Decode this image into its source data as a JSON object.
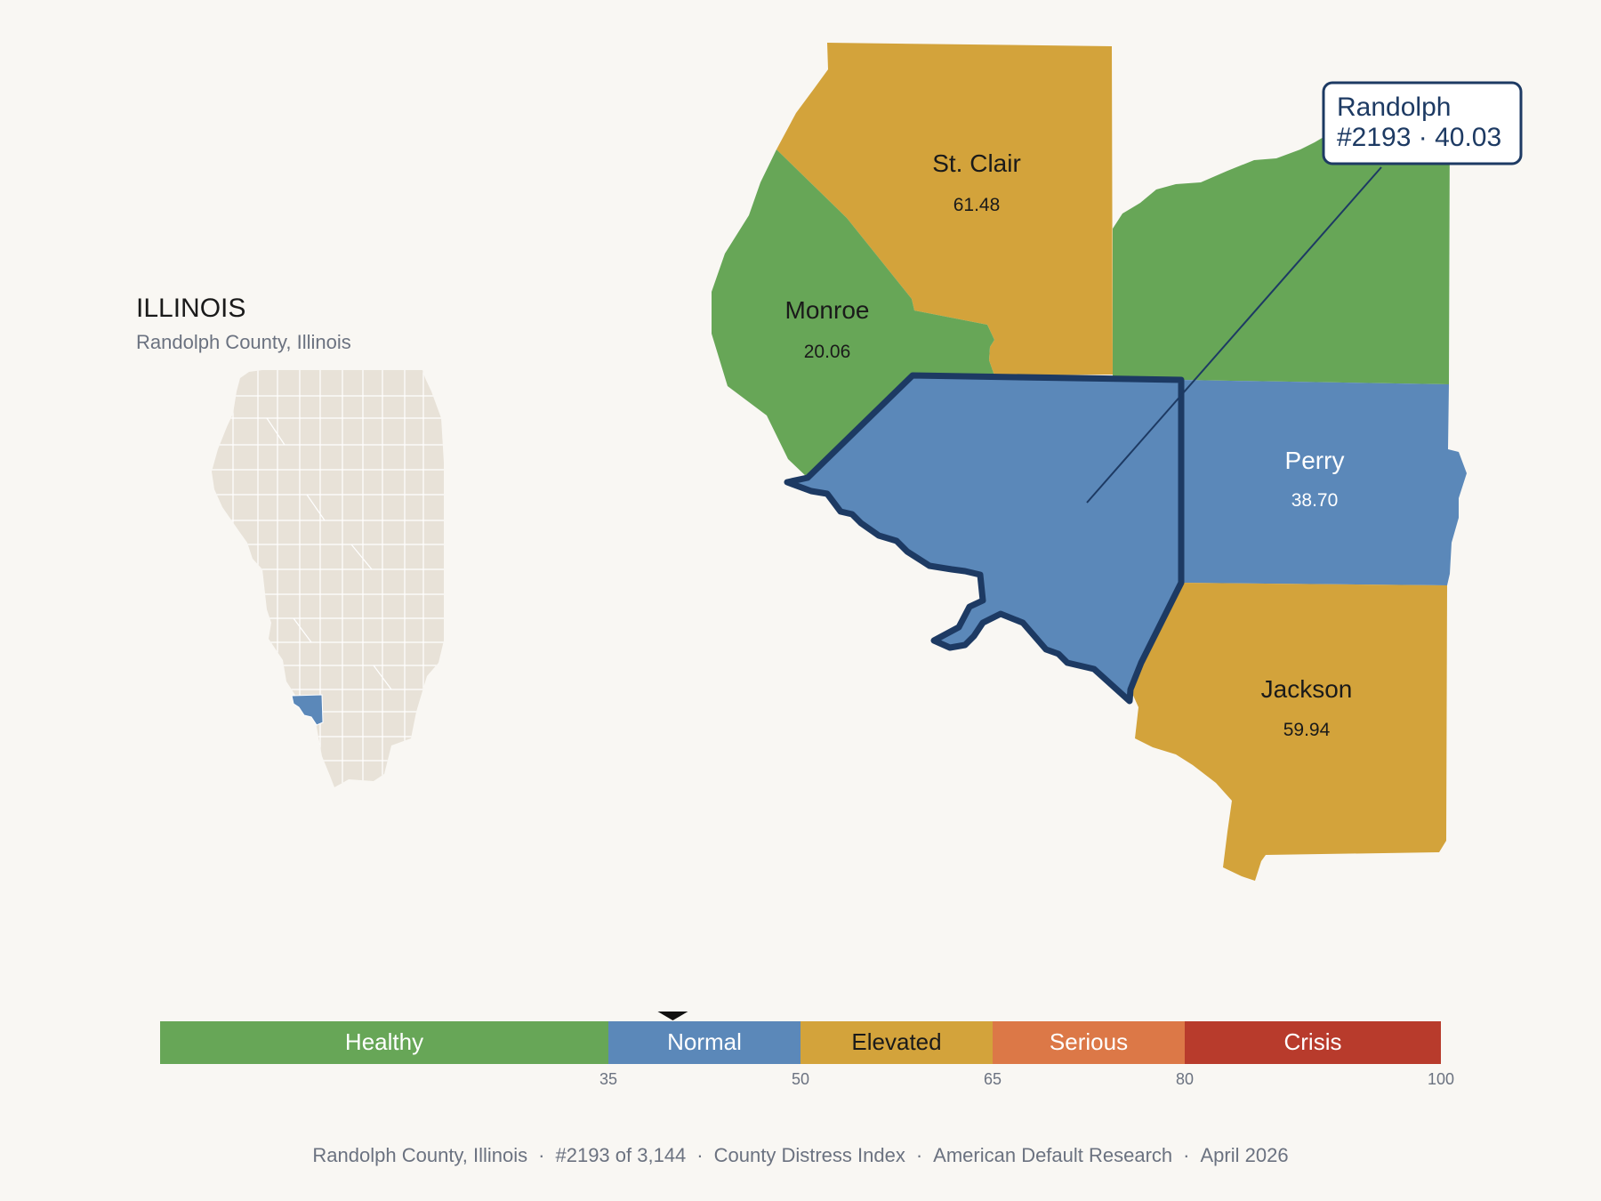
{
  "state": {
    "title": "ILLINOIS",
    "subtitle": "Randolph County, Illinois"
  },
  "colors": {
    "background": "#f9f7f3",
    "state_fill": "#e8e2d8",
    "healthy": "#67a657",
    "normal": "#5b88b9",
    "elevated": "#d3a33b",
    "serious": "#dc7847",
    "crisis": "#b83b2c",
    "highlight_outline": "#1d3a63"
  },
  "counties": {
    "st_clair": {
      "name": "St. Clair",
      "value": "61.48",
      "category": "elevated"
    },
    "monroe": {
      "name": "Monroe",
      "value": "20.06",
      "category": "healthy"
    },
    "washington": {
      "name": "",
      "value": "",
      "category": "healthy"
    },
    "perry": {
      "name": "Perry",
      "value": "38.70",
      "category": "normal"
    },
    "jackson": {
      "name": "Jackson",
      "value": "59.94",
      "category": "elevated"
    },
    "randolph": {
      "name": "Randolph",
      "value": "40.03",
      "category": "normal"
    }
  },
  "callout": {
    "line1": "Randolph",
    "line2": "#2193 · 40.03"
  },
  "scale": {
    "bands": [
      {
        "label": "Healthy",
        "from": 0,
        "to": 35,
        "color": "#67a657",
        "text_color": "#ffffff"
      },
      {
        "label": "Normal",
        "from": 35,
        "to": 50,
        "color": "#5b88b9",
        "text_color": "#ffffff"
      },
      {
        "label": "Elevated",
        "from": 50,
        "to": 65,
        "color": "#d3a33b",
        "text_color": "#1a1a1a"
      },
      {
        "label": "Serious",
        "from": 65,
        "to": 80,
        "color": "#dc7847",
        "text_color": "#ffffff"
      },
      {
        "label": "Crisis",
        "from": 80,
        "to": 100,
        "color": "#b83b2c",
        "text_color": "#ffffff"
      }
    ],
    "ticks": [
      "35",
      "50",
      "65",
      "80",
      "100"
    ],
    "marker_value": 40.03
  },
  "footer": {
    "county": "Randolph County, Illinois",
    "rank": "#2193 of 3,144",
    "index": "County Distress Index",
    "source": "American Default Research",
    "date": "April 2026"
  }
}
